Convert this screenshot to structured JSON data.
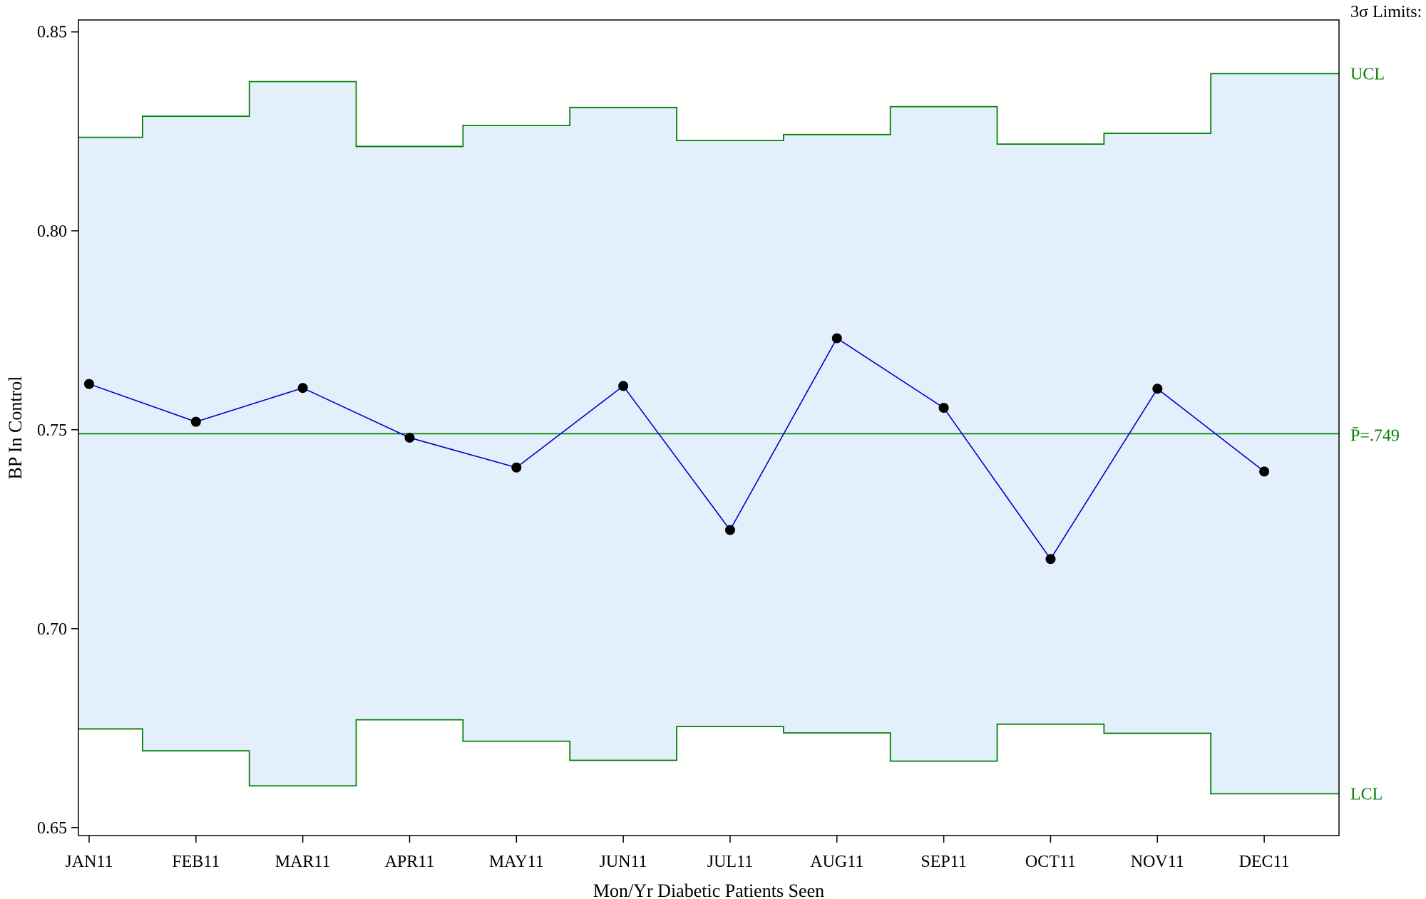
{
  "chart_data": {
    "type": "line",
    "subtype": "p-chart (control chart) with step-wise 3-sigma limits",
    "xlabel": "Mon/Yr Diabetic Patients Seen",
    "ylabel": "BP In Control",
    "ylim": [
      0.648,
      0.853
    ],
    "yticks": [
      "0.65",
      "0.70",
      "0.75",
      "0.80",
      "0.85"
    ],
    "ytick_values": [
      0.65,
      0.7,
      0.75,
      0.8,
      0.85
    ],
    "categories": [
      "JAN11",
      "FEB11",
      "MAR11",
      "APR11",
      "MAY11",
      "JUN11",
      "JUL11",
      "AUG11",
      "SEP11",
      "OCT11",
      "NOV11",
      "DEC11"
    ],
    "values": [
      0.7615,
      0.752,
      0.7605,
      0.748,
      0.7405,
      0.761,
      0.7248,
      0.773,
      0.7555,
      0.7175,
      0.7603,
      0.7395
    ],
    "ucl": [
      0.8235,
      0.8288,
      0.8375,
      0.8212,
      0.8265,
      0.831,
      0.8227,
      0.8242,
      0.8312,
      0.8218,
      0.8245,
      0.8395
    ],
    "lcl": [
      0.6748,
      0.6693,
      0.6605,
      0.6771,
      0.6717,
      0.6669,
      0.6754,
      0.6738,
      0.6667,
      0.676,
      0.6737,
      0.6585
    ],
    "center": 0.749,
    "limits_title": "3σ Limits:",
    "ucl_label": "UCL",
    "lcl_label": "LCL",
    "center_label": "P̄=.749",
    "colors": {
      "band_fill": "#e3f0fc",
      "limits": "#008000",
      "series": "#0000cc",
      "markers": "#000000"
    },
    "grid": false
  }
}
